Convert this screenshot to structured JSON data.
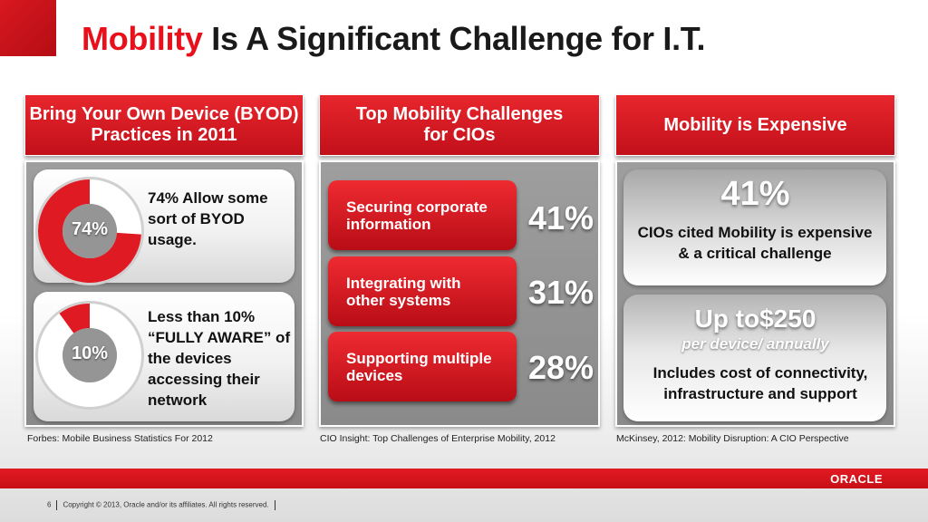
{
  "slide": {
    "title_accent": "Mobility",
    "title_rest": " Is A Significant Challenge for I.T."
  },
  "columns": [
    {
      "header": "Bring Your Own Device (BYOD) Practices in 2011"
    },
    {
      "header": "Top Mobility Challenges for CIOs"
    },
    {
      "header": "Mobility is Expensive"
    }
  ],
  "byod": [
    {
      "percent_label": "74%",
      "fraction": 0.74,
      "text": "74% Allow some sort of BYOD usage."
    },
    {
      "percent_label": "10%",
      "fraction": 0.1,
      "text": "Less than 10% “FULLY AWARE” of the devices accessing their network"
    }
  ],
  "challenges": [
    {
      "label": "Securing corporate information",
      "percent": "41%"
    },
    {
      "label": "Integrating with other systems",
      "percent": "31%"
    },
    {
      "label": "Supporting multiple devices",
      "percent": "28%"
    }
  ],
  "expensive": {
    "percent": "41%",
    "percent_text": "CIOs cited Mobility is expensive & a critical challenge",
    "cost": "Up to$250",
    "cost_sub": "per device/ annually",
    "cost_text": "Includes cost of connectivity, infrastructure and support"
  },
  "sources": [
    "Forbes: Mobile Business Statistics For 2012",
    "CIO Insight: Top Challenges of Enterprise Mobility, 2012",
    "McKinsey, 2012: Mobility Disruption: A CIO Perspective"
  ],
  "footer": {
    "page_number": "6",
    "copyright": "Copyright © 2013, Oracle and/or its affiliates. All rights reserved.",
    "logo": "ORACLE"
  },
  "colors": {
    "accent_red": "#e8101a",
    "donut_red": "#e01a22",
    "panel_gray": "#959595"
  }
}
